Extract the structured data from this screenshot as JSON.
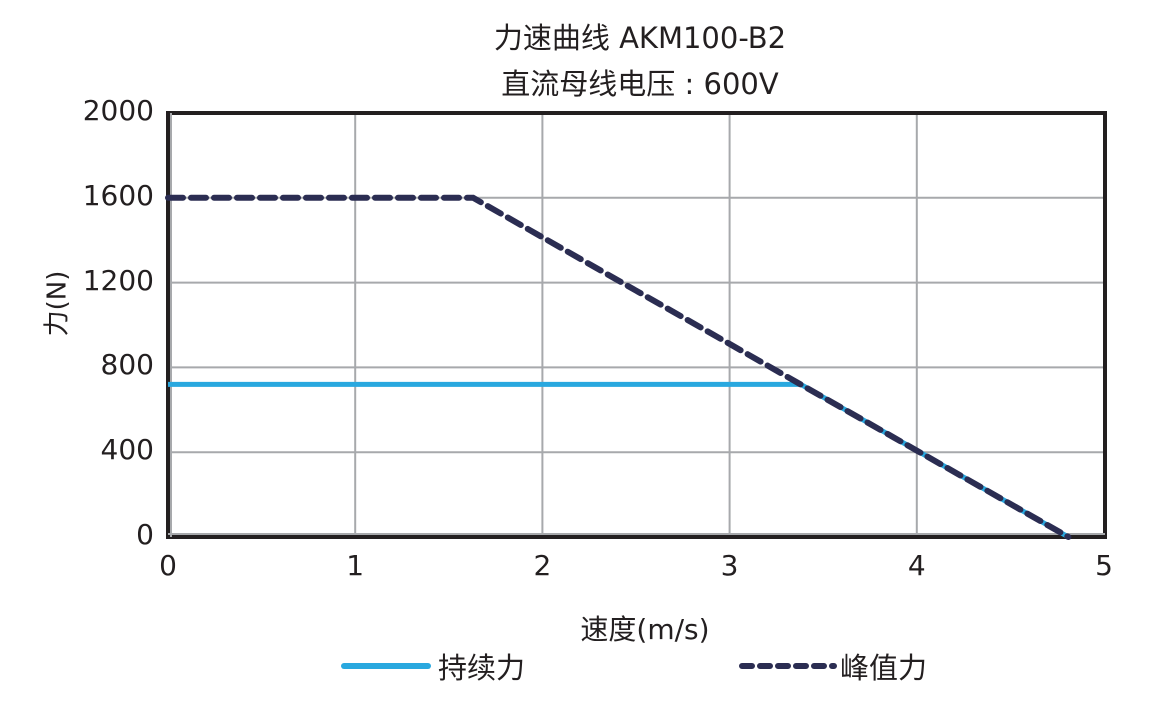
{
  "chart_data": {
    "type": "line",
    "title": "力速曲线 AKM100-B2",
    "subtitle": "直流母线电压 : 600V",
    "xlabel": "速度(m/s)",
    "ylabel": "力(N)",
    "xlim": [
      0,
      5
    ],
    "ylim": [
      0,
      2000
    ],
    "x_ticks": [
      "0",
      "1",
      "2",
      "3",
      "4",
      "5"
    ],
    "y_ticks": [
      "0",
      "400",
      "800",
      "1200",
      "1600",
      "2000"
    ],
    "grid": true,
    "legend_position": "bottom",
    "series": [
      {
        "name": "持续力",
        "style": "solid",
        "color": "#29a8df",
        "points": [
          [
            0,
            720
          ],
          [
            3.38,
            720
          ],
          [
            4.81,
            0
          ]
        ]
      },
      {
        "name": "峰值力",
        "style": "dashed",
        "color": "#2b2d52",
        "points": [
          [
            0,
            1600
          ],
          [
            1.63,
            1600
          ],
          [
            4.81,
            0
          ]
        ]
      }
    ]
  },
  "legend": {
    "continuous_label": "持续力",
    "peak_label": "峰值力"
  }
}
